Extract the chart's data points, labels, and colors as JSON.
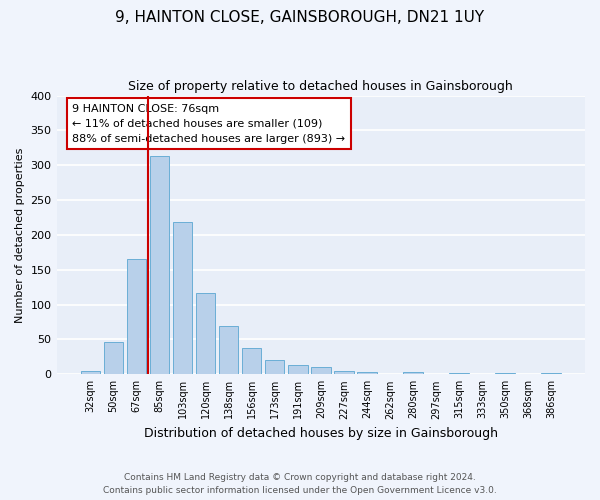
{
  "title": "9, HAINTON CLOSE, GAINSBOROUGH, DN21 1UY",
  "subtitle": "Size of property relative to detached houses in Gainsborough",
  "xlabel": "Distribution of detached houses by size in Gainsborough",
  "ylabel": "Number of detached properties",
  "bin_labels": [
    "32sqm",
    "50sqm",
    "67sqm",
    "85sqm",
    "103sqm",
    "120sqm",
    "138sqm",
    "156sqm",
    "173sqm",
    "191sqm",
    "209sqm",
    "227sqm",
    "244sqm",
    "262sqm",
    "280sqm",
    "297sqm",
    "315sqm",
    "333sqm",
    "350sqm",
    "368sqm",
    "386sqm"
  ],
  "bar_values": [
    5,
    46,
    165,
    313,
    219,
    117,
    69,
    38,
    20,
    13,
    11,
    5,
    3,
    0,
    3,
    0,
    2,
    0,
    2,
    0,
    2
  ],
  "bar_color": "#b8d0ea",
  "bar_edge_color": "#6aaed6",
  "background_color": "#e8eef8",
  "grid_color": "#ffffff",
  "vline_color": "#cc0000",
  "annotation_text": "9 HAINTON CLOSE: 76sqm\n← 11% of detached houses are smaller (109)\n88% of semi-detached houses are larger (893) →",
  "annotation_box_color": "#ffffff",
  "annotation_box_edge": "#cc0000",
  "ylim": [
    0,
    400
  ],
  "yticks": [
    0,
    50,
    100,
    150,
    200,
    250,
    300,
    350,
    400
  ],
  "footer_line1": "Contains HM Land Registry data © Crown copyright and database right 2024.",
  "footer_line2": "Contains public sector information licensed under the Open Government Licence v3.0.",
  "fig_facecolor": "#f0f4fc"
}
